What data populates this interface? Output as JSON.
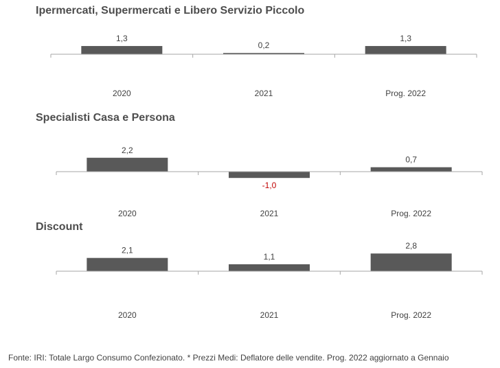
{
  "chart_data": [
    {
      "type": "bar",
      "title": "Ipermercati,  Supermercati e Libero Servizio Piccolo",
      "categories": [
        "2020",
        "2021",
        "Prog. 2022"
      ],
      "values": [
        1.3,
        0.2,
        1.3
      ],
      "value_labels": [
        "1,3",
        "0,2",
        "1,3"
      ]
    },
    {
      "type": "bar",
      "title": "Specialisti  Casa e Persona",
      "categories": [
        "2020",
        "2021",
        "Prog. 2022"
      ],
      "values": [
        2.2,
        -1.0,
        0.7
      ],
      "value_labels": [
        "2,2",
        "-1,0",
        "0,7"
      ]
    },
    {
      "type": "bar",
      "title": "Discount",
      "categories": [
        "2020",
        "2021",
        "Prog. 2022"
      ],
      "values": [
        2.1,
        1.1,
        2.8
      ],
      "value_labels": [
        "2,1",
        "1,1",
        "2,8"
      ]
    }
  ],
  "footnote": "Fonte: IRI: Totale Largo Consumo Confezionato.  * Prezzi  Medi: Deflatore delle vendite.  Prog. 2022 aggiornato a Gennaio",
  "colors": {
    "bar": "#595959",
    "negative_label": "#c00000",
    "axis": "#a6a6a6",
    "text": "#404040"
  }
}
